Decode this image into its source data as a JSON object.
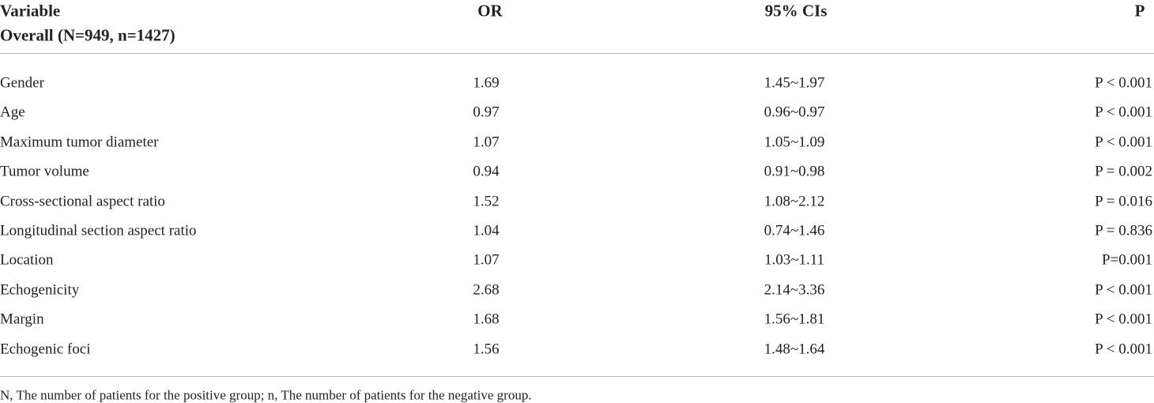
{
  "header": {
    "variable": "Variable",
    "subtitle": "Overall (N=949, n=1427)",
    "or": "OR",
    "ci": "95% CIs",
    "p": "P"
  },
  "table": {
    "rows": [
      [
        "Gender",
        "1.69",
        "1.45~1.97",
        "P < 0.001"
      ],
      [
        "Age",
        "0.97",
        "0.96~0.97",
        "P < 0.001"
      ],
      [
        "Maximum tumor diameter",
        "1.07",
        "1.05~1.09",
        "P < 0.001"
      ],
      [
        "Tumor volume",
        "0.94",
        "0.91~0.98",
        "P = 0.002"
      ],
      [
        "Cross-sectional aspect ratio",
        "1.52",
        "1.08~2.12",
        "P = 0.016"
      ],
      [
        "Longitudinal section aspect ratio",
        "1.04",
        "0.74~1.46",
        "P = 0.836"
      ],
      [
        "Location",
        "1.07",
        "1.03~1.11",
        "P=0.001"
      ],
      [
        "Echogenicity",
        "2.68",
        "2.14~3.36",
        "P < 0.001"
      ],
      [
        "Margin",
        "1.68",
        "1.56~1.81",
        "P < 0.001"
      ],
      [
        "Echogenic foci",
        "1.56",
        "1.48~1.64",
        "P < 0.001"
      ]
    ]
  },
  "footnote": "N, The number of patients for the positive group; n, The number of patients for the negative group."
}
